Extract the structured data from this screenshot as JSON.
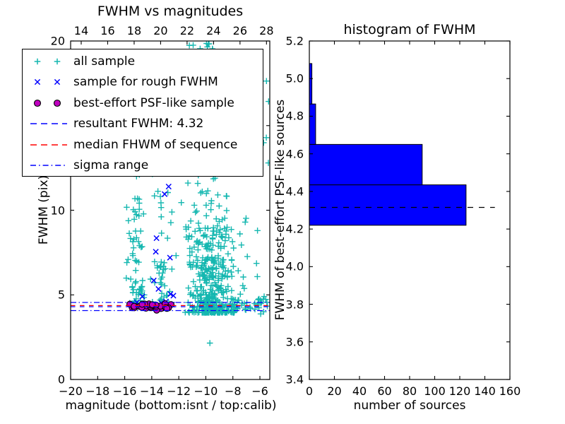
{
  "figure": {
    "background": "#ffffff",
    "accent_colors": {
      "cyan_sample": "#15b7b0",
      "blue": "#0000ff",
      "magenta": "#bf00bf",
      "red": "#ff0000",
      "black": "#000000"
    }
  },
  "legend": {
    "items": [
      {
        "label": "all sample",
        "marker": "plus2",
        "color": "#15b7b0"
      },
      {
        "label": "sample for rough FWHM",
        "marker": "x2",
        "color": "#0000ff"
      },
      {
        "label": "best-effort PSF-like sample",
        "marker": "dot2",
        "color": "#bf00bf",
        "edge": "#000000"
      },
      {
        "label": "resultant FWHM: 4.32",
        "marker": "dashed",
        "color": "#0000ff"
      },
      {
        "label": "median FHWM of sequence",
        "marker": "dashed",
        "color": "#ff0000"
      },
      {
        "label": "sigma range",
        "marker": "dashdot",
        "color": "#0000ff"
      }
    ]
  },
  "chart_data": [
    {
      "type": "scatter",
      "title": "FWHM vs magnitudes",
      "xlabel": "magnitude (bottom:isnt / top:calib)",
      "ylabel": "FWHM (pix)",
      "xlim": [
        -20,
        -5.27
      ],
      "ylim": [
        0,
        20
      ],
      "x_ticks": {
        "values": [
          -20,
          -18,
          -16,
          -14,
          -12,
          -10,
          -8,
          -6
        ],
        "labels": [
          "−20",
          "−18",
          "−16",
          "−14",
          "−12",
          "−10",
          "−8",
          "−6"
        ]
      },
      "top_axis": {
        "range": [
          13.2,
          28.25
        ],
        "values": [
          14,
          16,
          18,
          20,
          22,
          24,
          26,
          28
        ],
        "labels": [
          "14",
          "16",
          "18",
          "20",
          "22",
          "24",
          "26",
          "28"
        ]
      },
      "y_ticks": {
        "values": [
          0,
          5,
          10,
          15,
          20
        ],
        "labels": [
          "0",
          "5",
          "10",
          "15",
          "20"
        ]
      },
      "grid": false,
      "legend_position": "upper-left",
      "series": [
        {
          "name": "all sample",
          "marker": "plus",
          "color": "#15b7b0",
          "seed": 5,
          "clusters": [
            {
              "n": 10,
              "mag": {
                "u": [
                  -11.4,
                  -9.3
                ]
              },
              "fwhm": {
                "u": [
                  19.35,
                  20.0
                ]
              }
            },
            {
              "n": 78,
              "mag": {
                "n": [
                  -15.15,
                  0.33
                ],
                "clamp": [
                  -16.25,
                  -14.2
                ]
              },
              "fwhm": {
                "p": [
                  4.35,
                  12.4,
                  1.7
                ]
              }
            },
            {
              "n": 28,
              "mag": {
                "n": [
                  -13.0,
                  0.4
                ],
                "clamp": [
                  -13.95,
                  -12.15
                ]
              },
              "fwhm": {
                "p": [
                  4.7,
                  12.3,
                  1.4
                ]
              }
            },
            {
              "n": 335,
              "mag": {
                "n": [
                  -9.65,
                  0.85
                ],
                "clamp": [
                  -12.3,
                  -6.7
                ]
              },
              "fwhm": {
                "p": [
                  3.95,
                  9.0,
                  2.6
                ]
              }
            },
            {
              "n": 95,
              "mag": {
                "n": [
                  -9.9,
                  1.05
                ],
                "clamp": [
                  -12.2,
                  -7.2
                ]
              },
              "fwhm": {
                "p": [
                  6.5,
                  13.0,
                  1.6
                ]
              }
            },
            {
              "n": 50,
              "mag": {
                "u": [
                  -8.3,
                  -5.4
                ]
              },
              "fwhm": {
                "n": [
                  4.45,
                  0.3
                ],
                "clamp": [
                  3.7,
                  5.6
                ]
              }
            },
            {
              "n": 14,
              "mag": {
                "u": [
                  -8.6,
                  -6.0
                ]
              },
              "fwhm": {
                "u": [
                  4.9,
                  9.6
                ]
              }
            },
            {
              "n": 20,
              "mag": {
                "u": [
                  -14.7,
                  -12.6
                ]
              },
              "fwhm": {
                "p": [
                  4.35,
                  7.0,
                  2.0
                ]
              }
            },
            {
              "n": 5,
              "mag": {
                "u": [
                  -5.75,
                  -5.35
                ]
              },
              "fwhm": {
                "u": [
                  12.0,
                  19.0
                ]
              }
            }
          ],
          "points": [
            [
              -9.7,
              2.15
            ]
          ]
        },
        {
          "name": "sample for rough FWHM",
          "marker": "x",
          "color": "#0000ff",
          "points": [
            [
              -12.75,
              11.4
            ],
            [
              -13.05,
              10.95
            ],
            [
              -13.65,
              8.35
            ],
            [
              -13.7,
              7.55
            ],
            [
              -12.65,
              7.2
            ],
            [
              -13.85,
              5.85
            ],
            [
              -13.5,
              5.35
            ],
            [
              -12.62,
              5.05
            ],
            [
              -14.7,
              4.9
            ],
            [
              -12.4,
              4.95
            ],
            [
              -15.1,
              4.55
            ],
            [
              -14.2,
              4.45
            ],
            [
              -13.3,
              4.52
            ],
            [
              -12.5,
              4.42
            ],
            [
              -14.0,
              4.35
            ],
            [
              -12.95,
              4.6
            ],
            [
              -13.6,
              4.3
            ]
          ]
        },
        {
          "name": "best-effort PSF-like sample",
          "marker": "circle",
          "color": "#bf00bf",
          "edge": "#000000",
          "seed": 11,
          "clusters": [
            {
              "n": 32,
              "mag": {
                "u": [
                  -15.7,
                  -12.5
                ]
              },
              "fwhm": {
                "n": [
                  4.33,
                  0.1
                ],
                "clamp": [
                  4.08,
                  4.56
                ]
              }
            }
          ]
        }
      ],
      "hlines": [
        {
          "name": "sigma-range-upper",
          "y": 4.55,
          "color": "#0000ff",
          "dash": "dashdot"
        },
        {
          "name": "median-fhwm",
          "y": 4.37,
          "color": "#ff0000",
          "dash": "dashed"
        },
        {
          "name": "resultant-fwhm",
          "y": 4.3,
          "color": "#0000ff",
          "dash": "dashed"
        },
        {
          "name": "sigma-range-lower",
          "y": 4.07,
          "color": "#0000ff",
          "dash": "dashdot"
        }
      ]
    },
    {
      "type": "bar",
      "orientation": "horizontal",
      "title": "histogram of FWHM",
      "xlabel": "number of sources",
      "ylabel": "FWHM of best-effort PSF-like sources",
      "xlim": [
        0,
        160
      ],
      "ylim": [
        3.4,
        5.2
      ],
      "x_ticks": {
        "values": [
          0,
          20,
          40,
          60,
          80,
          100,
          120,
          140,
          160
        ],
        "labels": [
          "0",
          "20",
          "40",
          "60",
          "80",
          "100",
          "120",
          "140",
          "160"
        ]
      },
      "y_ticks": {
        "values": [
          3.4,
          3.6,
          3.8,
          4.0,
          4.2,
          4.4,
          4.6,
          4.8,
          5.0,
          5.2
        ],
        "labels": [
          "3.4",
          "3.6",
          "3.8",
          "4.0",
          "4.2",
          "4.4",
          "4.6",
          "4.8",
          "5.0",
          "5.2"
        ]
      },
      "grid": false,
      "bar_color": "#0000ff",
      "bar_edge": "#000000",
      "bins": [
        {
          "from": 4.22,
          "to": 4.435,
          "count": 125
        },
        {
          "from": 4.435,
          "to": 4.65,
          "count": 90
        },
        {
          "from": 4.65,
          "to": 4.865,
          "count": 5
        },
        {
          "from": 4.865,
          "to": 5.08,
          "count": 2
        }
      ],
      "dashed_line": {
        "y": 4.315,
        "x_start": 0,
        "x_end": 148,
        "color": "#000000",
        "dash": "dashed"
      }
    }
  ]
}
